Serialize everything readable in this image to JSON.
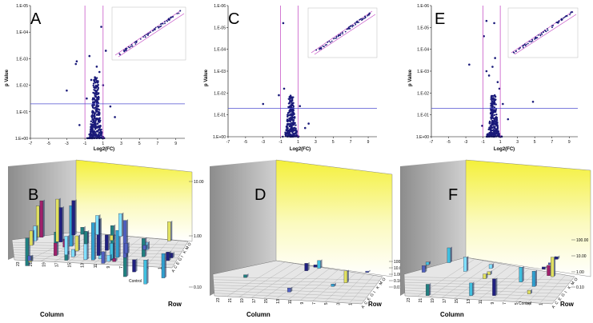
{
  "volcano_common": {
    "ylabel": "p Value",
    "xlabel": "Log2(FC)",
    "x_ticks": [
      "-7",
      "-5",
      "-3",
      "-1",
      "1",
      "3",
      "5",
      "7",
      "9"
    ],
    "y_ticks_A": [
      "1.E-05",
      "1.E-04",
      "1.E-03",
      "1.E-02",
      "1.E-01",
      "1.E+00"
    ],
    "y_ticks_CE": [
      "1.E-06",
      "1.E-05",
      "1.E-04",
      "1.E-03",
      "1.E-02",
      "1.E-01",
      "1.E+00"
    ],
    "colors": {
      "points": "#1a1a7a",
      "threshold_v": "#c040c0",
      "threshold_h": "#5050d0"
    }
  },
  "bar3d_common": {
    "xlabel": "Column",
    "ylabel": "Row",
    "col_ticks": [
      "23",
      "21",
      "19",
      "17",
      "15",
      "13",
      "11",
      "9",
      "7",
      "5",
      "3",
      "1"
    ],
    "row_ticks": [
      "A",
      "C",
      "E",
      "G",
      "I",
      "K",
      "M",
      "O"
    ],
    "control_label": "Control",
    "colors": {
      "wall": "#f0f060",
      "bars": [
        "#40c0e0",
        "#30a0d0",
        "#202080",
        "#80e0ff",
        "#a0206a",
        "#e0e060",
        "#208080",
        "#5060c0"
      ]
    }
  },
  "panels": {
    "A": {
      "label": "A"
    },
    "B": {
      "label": "B",
      "zticks": [
        "10.00",
        "1.00",
        "0.10"
      ]
    },
    "C": {
      "label": "C"
    },
    "D": {
      "label": "D",
      "zticks": [
        "100.00",
        "10.00",
        "1.00",
        "0.10",
        "0.01"
      ]
    },
    "E": {
      "label": "E"
    },
    "F": {
      "label": "F",
      "zticks": [
        "100.00",
        "10.00",
        "1.00",
        "0.10"
      ]
    }
  },
  "chart_data": [
    {
      "panel": "A",
      "type": "scatter",
      "ylabel": "p Value",
      "xlabel": "Log2(FC)",
      "xlim": [
        -7,
        10
      ],
      "ylim_log10": [
        0,
        -5
      ],
      "vlines": [
        -1,
        1
      ],
      "hline_log10": -1.3,
      "points": [
        [
          -3,
          -1.8
        ],
        [
          -2,
          -2.8
        ],
        [
          -1.9,
          -2.9
        ],
        [
          0.8,
          -4.2
        ],
        [
          -0.5,
          -3.1
        ],
        [
          0.3,
          -2.7
        ],
        [
          0.6,
          -2.5
        ],
        [
          1.3,
          -3.3
        ],
        [
          0.1,
          -2.3
        ],
        [
          -0.3,
          -2.2
        ],
        [
          0.4,
          -2.1
        ],
        [
          0.2,
          -1.9
        ],
        [
          1.0,
          -2.0
        ],
        [
          -0.8,
          -1.5
        ],
        [
          1.8,
          -1.2
        ],
        [
          2.3,
          -0.8
        ],
        [
          -1.6,
          -0.5
        ],
        [
          0.5,
          -1.7
        ]
      ],
      "inset": {
        "type": "scatter",
        "trend": "linear identity"
      }
    },
    {
      "panel": "B",
      "type": "bar",
      "bar_style": "3d",
      "xlabel": "Column",
      "ylabel": "Row",
      "zscale": "log",
      "zlim": [
        0.1,
        10
      ]
    },
    {
      "panel": "C",
      "type": "scatter",
      "ylabel": "p Value",
      "xlabel": "Log2(FC)",
      "xlim": [
        -7,
        10
      ],
      "ylim_log10": [
        0,
        -6
      ],
      "vlines": [
        -1,
        1
      ],
      "hline_log10": -1.3,
      "points": [
        [
          -0.7,
          -5.2
        ],
        [
          -3.0,
          -1.5
        ],
        [
          -1.2,
          -1.9
        ],
        [
          -0.6,
          -2.2
        ],
        [
          0.3,
          -1.8
        ],
        [
          1.2,
          -1.4
        ],
        [
          -0.2,
          -1.0
        ],
        [
          0.6,
          -0.9
        ],
        [
          2.2,
          -0.6
        ],
        [
          1.8,
          -0.4
        ]
      ],
      "inset": {
        "type": "scatter",
        "trend": "linear identity"
      }
    },
    {
      "panel": "D",
      "type": "bar",
      "bar_style": "3d",
      "xlabel": "Column",
      "ylabel": "Row",
      "zscale": "log",
      "zlim": [
        0.01,
        100
      ]
    },
    {
      "panel": "E",
      "type": "scatter",
      "ylabel": "p Value",
      "xlabel": "Log2(FC)",
      "xlim": [
        -7,
        10
      ],
      "ylim_log10": [
        0,
        -6
      ],
      "vlines": [
        -1,
        1
      ],
      "hline_log10": -1.3,
      "points": [
        [
          -0.6,
          -5.3
        ],
        [
          0.3,
          -5.2
        ],
        [
          -0.9,
          -4.6
        ],
        [
          -2.6,
          -3.3
        ],
        [
          0.4,
          -3.6
        ],
        [
          -0.6,
          -3.0
        ],
        [
          0.1,
          -3.2
        ],
        [
          0.7,
          -2.5
        ],
        [
          -0.3,
          -2.8
        ],
        [
          0.9,
          -2.2
        ],
        [
          4.8,
          -1.6
        ],
        [
          1.3,
          -1.5
        ],
        [
          1.9,
          -0.8
        ],
        [
          -1.1,
          -0.5
        ]
      ],
      "inset": {
        "type": "scatter",
        "trend": "linear identity"
      }
    },
    {
      "panel": "F",
      "type": "bar",
      "bar_style": "3d",
      "xlabel": "Column",
      "ylabel": "Row",
      "zscale": "log",
      "zlim": [
        0.1,
        100
      ]
    }
  ]
}
